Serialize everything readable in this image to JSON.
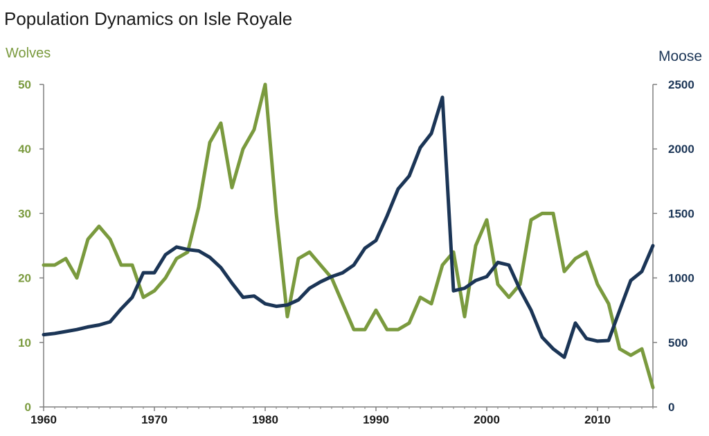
{
  "chart_data": {
    "type": "line",
    "title": "Population Dynamics on Isle Royale",
    "ylabel_left": "Wolves",
    "ylabel_right": "Moose",
    "xlim": [
      1960,
      2015
    ],
    "ylim_left": [
      0,
      50
    ],
    "ylim_right": [
      0,
      2500
    ],
    "x_ticks": [
      "1960",
      "1970",
      "1980",
      "1990",
      "2000",
      "2010"
    ],
    "y_left_ticks": [
      "0",
      "10",
      "20",
      "30",
      "40",
      "50"
    ],
    "y_right_ticks": [
      "0",
      "500",
      "1000",
      "1500",
      "2000",
      "2500"
    ],
    "grid": false,
    "colors": {
      "wolves": "#7a9a3e",
      "moose": "#1b3556",
      "axis": "#7f7f7f"
    },
    "years": [
      1960,
      1961,
      1962,
      1963,
      1964,
      1965,
      1966,
      1967,
      1968,
      1969,
      1970,
      1971,
      1972,
      1973,
      1974,
      1975,
      1976,
      1977,
      1978,
      1979,
      1980,
      1981,
      1982,
      1983,
      1984,
      1985,
      1986,
      1987,
      1988,
      1989,
      1990,
      1991,
      1992,
      1993,
      1994,
      1995,
      1996,
      1997,
      1998,
      1999,
      2000,
      2001,
      2002,
      2003,
      2004,
      2005,
      2006,
      2007,
      2008,
      2009,
      2010,
      2011,
      2012,
      2013,
      2014,
      2015
    ],
    "series": [
      {
        "name": "Wolves",
        "axis": "left",
        "values": [
          22,
          22,
          23,
          20,
          26,
          28,
          26,
          22,
          22,
          17,
          18,
          20,
          23,
          24,
          31,
          41,
          44,
          34,
          40,
          43,
          50,
          30,
          14,
          23,
          24,
          22,
          20,
          16,
          12,
          12,
          15,
          12,
          12,
          13,
          17,
          16,
          22,
          24,
          14,
          25,
          29,
          19,
          17,
          19,
          29,
          30,
          30,
          21,
          23,
          24,
          19,
          16,
          9,
          8,
          9,
          3
        ]
      },
      {
        "name": "Moose",
        "axis": "right",
        "values": [
          560,
          570,
          585,
          600,
          620,
          635,
          660,
          760,
          850,
          1040,
          1040,
          1180,
          1240,
          1220,
          1210,
          1160,
          1080,
          960,
          850,
          860,
          800,
          780,
          790,
          830,
          920,
          970,
          1010,
          1040,
          1100,
          1230,
          1290,
          1480,
          1690,
          1790,
          2010,
          2120,
          2400,
          900,
          920,
          980,
          1010,
          1120,
          1100,
          910,
          750,
          540,
          450,
          385,
          650,
          530,
          510,
          515,
          750,
          980,
          1050,
          1250
        ]
      }
    ]
  }
}
